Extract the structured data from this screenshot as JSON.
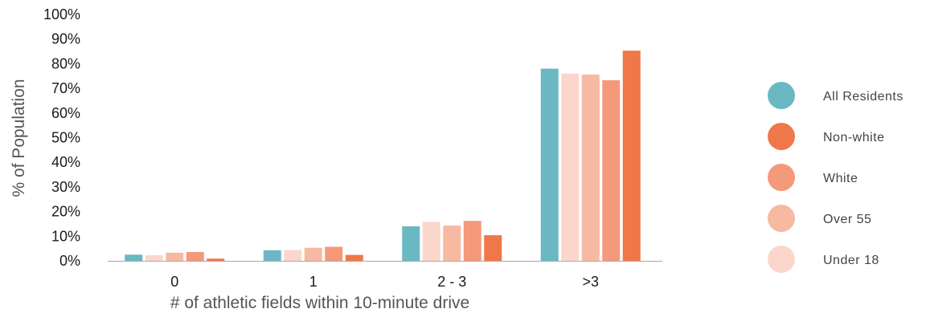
{
  "chart_data": {
    "type": "bar",
    "title": "",
    "xlabel": "# of athletic fields within 10-minute drive",
    "ylabel": "% of Population",
    "ylim": [
      0,
      100
    ],
    "yticks": [
      "0%",
      "10%",
      "20%",
      "30%",
      "40%",
      "50%",
      "60%",
      "70%",
      "80%",
      "90%",
      "100%"
    ],
    "categories": [
      "0",
      "1",
      "2 - 3",
      ">3"
    ],
    "series": [
      {
        "name": "All Residents",
        "color": "#6ab8c2",
        "values": [
          2.5,
          4.3,
          14,
          78
        ]
      },
      {
        "name": "Under 18",
        "color": "#fbd7cb",
        "values": [
          2.3,
          4.4,
          15.8,
          76
        ]
      },
      {
        "name": "Over 55",
        "color": "#f7b9a1",
        "values": [
          3.3,
          5.3,
          14.3,
          75.6
        ]
      },
      {
        "name": "White",
        "color": "#f4997a",
        "values": [
          3.6,
          5.7,
          16.2,
          73.3
        ]
      },
      {
        "name": "Non-white",
        "color": "#f0774a",
        "values": [
          0.9,
          2.4,
          10.4,
          85.3
        ]
      }
    ],
    "legend": {
      "placement": "right",
      "order": [
        "All Residents",
        "Non-white",
        "White",
        "Over 55",
        "Under 18"
      ]
    },
    "grid": false
  }
}
